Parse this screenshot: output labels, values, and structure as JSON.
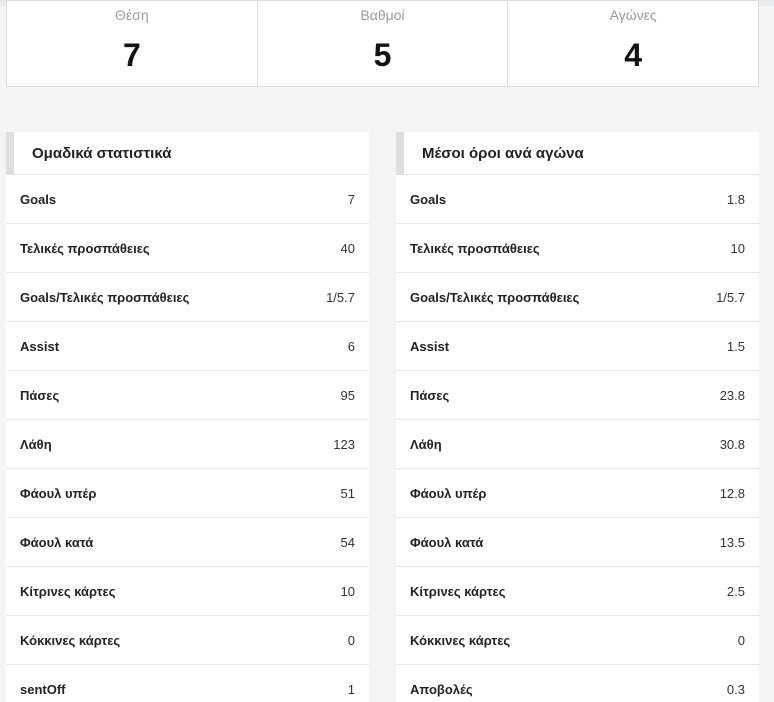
{
  "summary": [
    {
      "label": "Θέση",
      "value": "7"
    },
    {
      "label": "Βαθμοί",
      "value": "5"
    },
    {
      "label": "Αγώνες",
      "value": "4"
    }
  ],
  "team_stats": {
    "title": "Ομαδικά στατιστικά",
    "rows": [
      {
        "label": "Goals",
        "value": "7"
      },
      {
        "label": "Τελικές προσπάθειες",
        "value": "40"
      },
      {
        "label": "Goals/Τελικές προσπάθειες",
        "value": "1/5.7"
      },
      {
        "label": "Assist",
        "value": "6"
      },
      {
        "label": "Πάσες",
        "value": "95"
      },
      {
        "label": "Λάθη",
        "value": "123"
      },
      {
        "label": "Φάουλ υπέρ",
        "value": "51"
      },
      {
        "label": "Φάουλ κατά",
        "value": "54"
      },
      {
        "label": "Κίτρινες κάρτες",
        "value": "10"
      },
      {
        "label": "Κόκκινες κάρτες",
        "value": "0"
      },
      {
        "label": "sentOff",
        "value": "1"
      }
    ]
  },
  "averages": {
    "title": "Μέσοι όροι ανά αγώνα",
    "rows": [
      {
        "label": "Goals",
        "value": "1.8"
      },
      {
        "label": "Τελικές προσπάθειες",
        "value": "10"
      },
      {
        "label": "Goals/Τελικές προσπάθειες",
        "value": "1/5.7"
      },
      {
        "label": "Assist",
        "value": "1.5"
      },
      {
        "label": "Πάσες",
        "value": "23.8"
      },
      {
        "label": "Λάθη",
        "value": "30.8"
      },
      {
        "label": "Φάουλ υπέρ",
        "value": "12.8"
      },
      {
        "label": "Φάουλ κατά",
        "value": "13.5"
      },
      {
        "label": "Κίτρινες κάρτες",
        "value": "2.5"
      },
      {
        "label": "Κόκκινες κάρτες",
        "value": "0"
      },
      {
        "label": "Αποβολές",
        "value": "0.3"
      }
    ]
  }
}
